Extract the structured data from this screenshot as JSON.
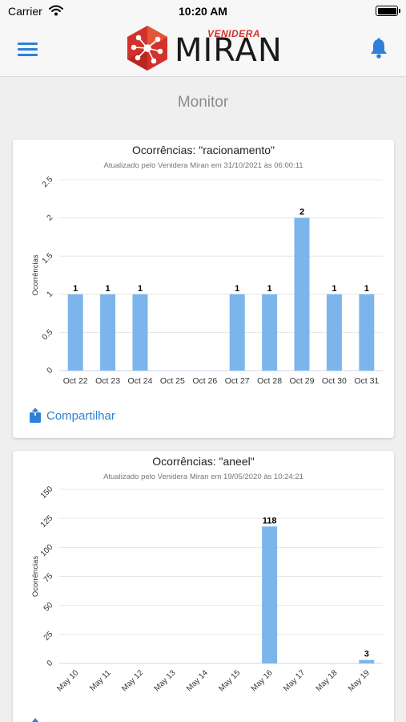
{
  "status_bar": {
    "carrier": "Carrier",
    "time": "10:20 AM"
  },
  "nav": {
    "logo_brand": "VENIDERA",
    "logo_word": "MIRAN"
  },
  "page": {
    "title": "Monitor"
  },
  "colors": {
    "bar": "#7cb5ec",
    "accent": "#2f80d8",
    "logo_red": "#d3322c"
  },
  "cards": [
    {
      "title": "Ocorrências: \"racionamento\"",
      "subtitle": "Atualizado pelo Venidera Miran em 31/10/2021 às 06:00:11",
      "share_label": "Compartilhar"
    },
    {
      "title": "Ocorrências: \"aneel\"",
      "subtitle": "Atualizado pelo Venidera Miran em 19/05/2020 às 10:24:21"
    }
  ],
  "chart_data": [
    {
      "type": "bar",
      "categories": [
        "Oct 22",
        "Oct 23",
        "Oct 24",
        "Oct 25",
        "Oct 26",
        "Oct 27",
        "Oct 28",
        "Oct 29",
        "Oct 30",
        "Oct 31"
      ],
      "values": [
        1,
        1,
        1,
        0,
        0,
        1,
        1,
        2,
        1,
        1
      ],
      "data_labels": [
        "1",
        "1",
        "1",
        "",
        "",
        "1",
        "1",
        "2",
        "1",
        "1"
      ],
      "ylabel": "Ocorrências",
      "xlabel": "",
      "ylim": [
        0,
        2.5
      ],
      "yticks": [
        "0",
        "0.5",
        "1",
        "1.5",
        "2",
        "2.5"
      ],
      "ytick_values": [
        0,
        0.5,
        1,
        1.5,
        2,
        2.5
      ],
      "xtick_rotated": false,
      "grid": true
    },
    {
      "type": "bar",
      "categories": [
        "May 10",
        "May 11",
        "May 12",
        "May 13",
        "May 14",
        "May 15",
        "May 16",
        "May 17",
        "May 18",
        "May 19"
      ],
      "values": [
        0,
        0,
        0,
        0,
        0,
        0,
        118,
        0,
        0,
        3
      ],
      "data_labels": [
        "",
        "",
        "",
        "",
        "",
        "",
        "118",
        "",
        "",
        "3"
      ],
      "ylabel": "Ocorrências",
      "xlabel": "",
      "ylim": [
        0,
        150
      ],
      "yticks": [
        "0",
        "25",
        "50",
        "75",
        "100",
        "125",
        "150"
      ],
      "ytick_values": [
        0,
        25,
        50,
        75,
        100,
        125,
        150
      ],
      "xtick_rotated": true,
      "grid": true
    }
  ]
}
